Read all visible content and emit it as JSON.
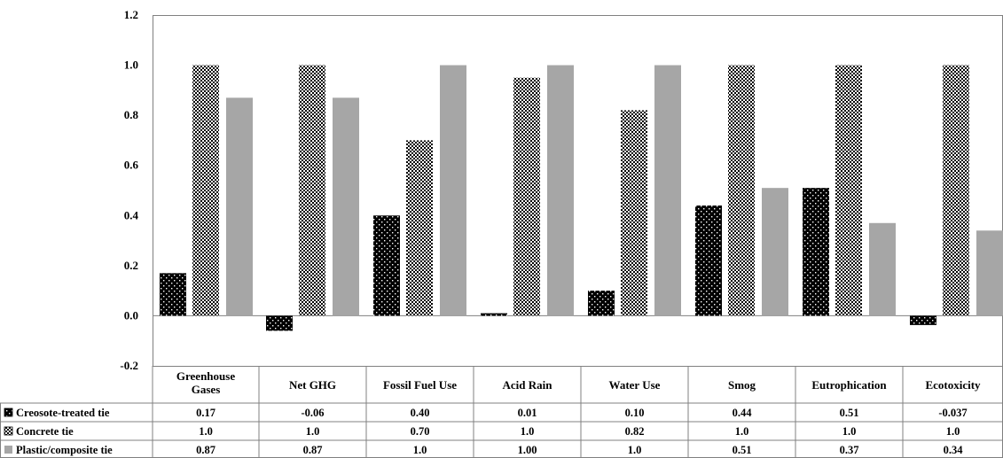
{
  "chart_data": {
    "type": "bar",
    "title": "",
    "xlabel": "",
    "ylabel": "",
    "ylim": [
      -0.2,
      1.2
    ],
    "yticks": [
      "1.2",
      "1.0",
      "0.8",
      "0.6",
      "0.4",
      "0.2",
      "0.0",
      "-0.2"
    ],
    "ytick_values": [
      1.2,
      1.0,
      0.8,
      0.6,
      0.4,
      0.2,
      0.0,
      -0.2
    ],
    "grid": false,
    "legend": "data-table-below",
    "categories": [
      [
        "Greenhouse",
        "Gases"
      ],
      [
        "Net GHG"
      ],
      [
        "Fossil Fuel Use"
      ],
      [
        "Acid Rain"
      ],
      [
        "Water Use"
      ],
      [
        "Smog"
      ],
      [
        "Eutrophication"
      ],
      [
        "Ecotoxicity"
      ]
    ],
    "series": [
      {
        "name": "Creosote-treated tie",
        "pattern": "dotted-black",
        "values": [
          0.17,
          -0.06,
          0.4,
          0.01,
          0.1,
          0.44,
          0.51,
          -0.037
        ],
        "labels": [
          "0.17",
          "-0.06",
          "0.40",
          "0.01",
          "0.10",
          "0.44",
          "0.51",
          "-0.037"
        ]
      },
      {
        "name": "Concrete tie",
        "pattern": "checkered",
        "values": [
          1.0,
          1.0,
          0.7,
          0.95,
          0.82,
          1.0,
          1.0,
          1.0
        ],
        "labels": [
          "1.0",
          "1.0",
          "0.70",
          "1.0",
          "0.82",
          "1.0",
          "1.0",
          "1.0"
        ]
      },
      {
        "name": "Plastic/composite tie",
        "pattern": "solid-gray",
        "color": "#a6a6a6",
        "values": [
          0.87,
          0.87,
          1.0,
          1.0,
          1.0,
          0.51,
          0.37,
          0.34
        ],
        "labels": [
          "0.87",
          "0.87",
          "1.0",
          "1.00",
          "1.0",
          "0.51",
          "0.37",
          "0.34"
        ]
      }
    ]
  }
}
